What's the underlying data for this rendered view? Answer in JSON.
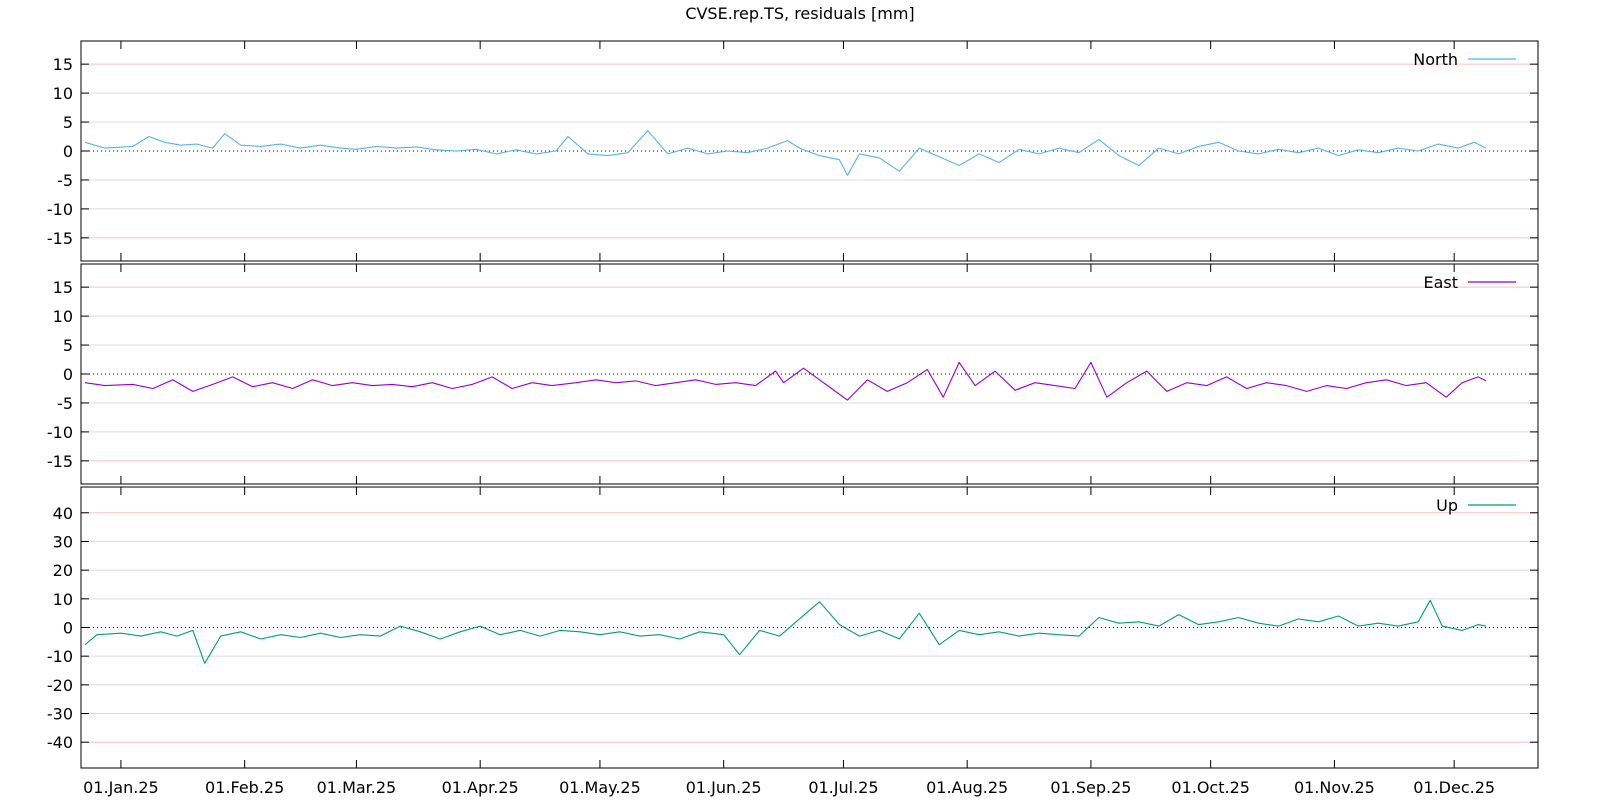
{
  "chart_data": {
    "type": "line",
    "title": "CVSE.rep.TS, residuals [mm]",
    "x_axis": {
      "type": "date",
      "range": [
        "2024-12-22",
        "2025-12-22"
      ],
      "tick_dates": [
        "2025-01-01",
        "2025-02-01",
        "2025-03-01",
        "2025-04-01",
        "2025-05-01",
        "2025-06-01",
        "2025-07-01",
        "2025-08-01",
        "2025-09-01",
        "2025-10-01",
        "2025-11-01",
        "2025-12-01"
      ],
      "tick_labels": [
        "01.Jan.25",
        "01.Feb.25",
        "01.Mar.25",
        "01.Apr.25",
        "01.May.25",
        "01.Jun.25",
        "01.Jul.25",
        "01.Aug.25",
        "01.Sep.25",
        "01.Oct.25",
        "01.Nov.25",
        "01.Dec.25"
      ]
    },
    "panels": [
      {
        "name": "North",
        "color": "#56b4e9",
        "ylim": [
          -19,
          19
        ],
        "yticks": [
          -15,
          -10,
          -5,
          0,
          5,
          10,
          15
        ],
        "legend": "top-right",
        "points": [
          [
            "2024-12-23",
            1.5
          ],
          [
            "2024-12-28",
            0.5
          ],
          [
            "2025-01-04",
            0.8
          ],
          [
            "2025-01-08",
            2.5
          ],
          [
            "2025-01-12",
            1.5
          ],
          [
            "2025-01-16",
            1.0
          ],
          [
            "2025-01-20",
            1.2
          ],
          [
            "2025-01-24",
            0.5
          ],
          [
            "2025-01-27",
            3.0
          ],
          [
            "2025-01-31",
            1.0
          ],
          [
            "2025-02-05",
            0.8
          ],
          [
            "2025-02-10",
            1.2
          ],
          [
            "2025-02-15",
            0.5
          ],
          [
            "2025-02-20",
            1.0
          ],
          [
            "2025-02-25",
            0.5
          ],
          [
            "2025-03-01",
            0.3
          ],
          [
            "2025-03-06",
            0.8
          ],
          [
            "2025-03-11",
            0.5
          ],
          [
            "2025-03-16",
            0.7
          ],
          [
            "2025-03-21",
            0.2
          ],
          [
            "2025-03-26",
            0.0
          ],
          [
            "2025-03-31",
            0.3
          ],
          [
            "2025-04-05",
            -0.5
          ],
          [
            "2025-04-10",
            0.2
          ],
          [
            "2025-04-15",
            -0.5
          ],
          [
            "2025-04-20",
            0.0
          ],
          [
            "2025-04-23",
            2.5
          ],
          [
            "2025-04-28",
            -0.5
          ],
          [
            "2025-05-03",
            -0.8
          ],
          [
            "2025-05-08",
            -0.3
          ],
          [
            "2025-05-13",
            3.5
          ],
          [
            "2025-05-18",
            -0.5
          ],
          [
            "2025-05-23",
            0.5
          ],
          [
            "2025-05-28",
            -0.5
          ],
          [
            "2025-06-02",
            0.0
          ],
          [
            "2025-06-07",
            -0.3
          ],
          [
            "2025-06-12",
            0.5
          ],
          [
            "2025-06-17",
            1.8
          ],
          [
            "2025-06-20",
            0.5
          ],
          [
            "2025-06-25",
            -0.8
          ],
          [
            "2025-06-30",
            -1.5
          ],
          [
            "2025-07-02",
            -4.2
          ],
          [
            "2025-07-05",
            -0.5
          ],
          [
            "2025-07-10",
            -1.2
          ],
          [
            "2025-07-15",
            -3.5
          ],
          [
            "2025-07-20",
            0.5
          ],
          [
            "2025-07-25",
            -1.0
          ],
          [
            "2025-07-30",
            -2.5
          ],
          [
            "2025-08-04",
            -0.5
          ],
          [
            "2025-08-09",
            -2.0
          ],
          [
            "2025-08-14",
            0.3
          ],
          [
            "2025-08-19",
            -0.5
          ],
          [
            "2025-08-24",
            0.5
          ],
          [
            "2025-08-29",
            -0.3
          ],
          [
            "2025-09-03",
            2.0
          ],
          [
            "2025-09-08",
            -0.8
          ],
          [
            "2025-09-13",
            -2.5
          ],
          [
            "2025-09-18",
            0.5
          ],
          [
            "2025-09-23",
            -0.5
          ],
          [
            "2025-09-28",
            0.8
          ],
          [
            "2025-10-03",
            1.5
          ],
          [
            "2025-10-08",
            0.0
          ],
          [
            "2025-10-13",
            -0.5
          ],
          [
            "2025-10-18",
            0.3
          ],
          [
            "2025-10-23",
            -0.3
          ],
          [
            "2025-10-28",
            0.5
          ],
          [
            "2025-11-02",
            -0.8
          ],
          [
            "2025-11-07",
            0.2
          ],
          [
            "2025-11-12",
            -0.3
          ],
          [
            "2025-11-17",
            0.5
          ],
          [
            "2025-11-22",
            0.0
          ],
          [
            "2025-11-27",
            1.2
          ],
          [
            "2025-12-02",
            0.5
          ],
          [
            "2025-12-06",
            1.5
          ],
          [
            "2025-12-09",
            0.5
          ]
        ]
      },
      {
        "name": "East",
        "color": "#9400d3",
        "ylim": [
          -19,
          19
        ],
        "yticks": [
          -15,
          -10,
          -5,
          0,
          5,
          10,
          15
        ],
        "legend": "top-right",
        "points": [
          [
            "2024-12-23",
            -1.5
          ],
          [
            "2024-12-28",
            -2.0
          ],
          [
            "2025-01-04",
            -1.8
          ],
          [
            "2025-01-09",
            -2.5
          ],
          [
            "2025-01-14",
            -1.0
          ],
          [
            "2025-01-19",
            -3.0
          ],
          [
            "2025-01-24",
            -1.8
          ],
          [
            "2025-01-29",
            -0.5
          ],
          [
            "2025-02-03",
            -2.2
          ],
          [
            "2025-02-08",
            -1.5
          ],
          [
            "2025-02-13",
            -2.5
          ],
          [
            "2025-02-18",
            -1.0
          ],
          [
            "2025-02-23",
            -2.0
          ],
          [
            "2025-02-28",
            -1.5
          ],
          [
            "2025-03-05",
            -2.0
          ],
          [
            "2025-03-10",
            -1.8
          ],
          [
            "2025-03-15",
            -2.2
          ],
          [
            "2025-03-20",
            -1.5
          ],
          [
            "2025-03-25",
            -2.5
          ],
          [
            "2025-03-30",
            -1.8
          ],
          [
            "2025-04-04",
            -0.5
          ],
          [
            "2025-04-09",
            -2.5
          ],
          [
            "2025-04-14",
            -1.5
          ],
          [
            "2025-04-19",
            -2.0
          ],
          [
            "2025-04-25",
            -1.5
          ],
          [
            "2025-04-30",
            -1.0
          ],
          [
            "2025-05-05",
            -1.5
          ],
          [
            "2025-05-10",
            -1.2
          ],
          [
            "2025-05-15",
            -2.0
          ],
          [
            "2025-05-20",
            -1.5
          ],
          [
            "2025-05-25",
            -1.0
          ],
          [
            "2025-05-30",
            -1.8
          ],
          [
            "2025-06-04",
            -1.5
          ],
          [
            "2025-06-09",
            -2.0
          ],
          [
            "2025-06-14",
            0.5
          ],
          [
            "2025-06-16",
            -1.5
          ],
          [
            "2025-06-21",
            1.0
          ],
          [
            "2025-06-24",
            -0.5
          ],
          [
            "2025-06-28",
            -2.5
          ],
          [
            "2025-07-02",
            -4.5
          ],
          [
            "2025-07-07",
            -1.0
          ],
          [
            "2025-07-12",
            -3.0
          ],
          [
            "2025-07-17",
            -1.5
          ],
          [
            "2025-07-22",
            0.8
          ],
          [
            "2025-07-26",
            -4.0
          ],
          [
            "2025-07-30",
            2.0
          ],
          [
            "2025-08-03",
            -2.0
          ],
          [
            "2025-08-08",
            0.5
          ],
          [
            "2025-08-13",
            -2.8
          ],
          [
            "2025-08-18",
            -1.5
          ],
          [
            "2025-08-23",
            -2.0
          ],
          [
            "2025-08-28",
            -2.5
          ],
          [
            "2025-09-01",
            2.0
          ],
          [
            "2025-09-05",
            -4.0
          ],
          [
            "2025-09-10",
            -1.5
          ],
          [
            "2025-09-15",
            0.5
          ],
          [
            "2025-09-20",
            -3.0
          ],
          [
            "2025-09-25",
            -1.5
          ],
          [
            "2025-09-30",
            -2.0
          ],
          [
            "2025-10-05",
            -0.5
          ],
          [
            "2025-10-10",
            -2.5
          ],
          [
            "2025-10-15",
            -1.5
          ],
          [
            "2025-10-20",
            -2.0
          ],
          [
            "2025-10-25",
            -3.0
          ],
          [
            "2025-10-30",
            -2.0
          ],
          [
            "2025-11-04",
            -2.5
          ],
          [
            "2025-11-09",
            -1.5
          ],
          [
            "2025-11-14",
            -1.0
          ],
          [
            "2025-11-19",
            -2.0
          ],
          [
            "2025-11-24",
            -1.5
          ],
          [
            "2025-11-29",
            -4.0
          ],
          [
            "2025-12-03",
            -1.5
          ],
          [
            "2025-12-07",
            -0.5
          ],
          [
            "2025-12-09",
            -1.2
          ]
        ]
      },
      {
        "name": "Up",
        "color": "#009e73",
        "ylim": [
          -49,
          49
        ],
        "yticks": [
          -40,
          -30,
          -20,
          -10,
          0,
          10,
          20,
          30,
          40
        ],
        "legend": "top-right",
        "points": [
          [
            "2024-12-23",
            -6.0
          ],
          [
            "2024-12-26",
            -2.5
          ],
          [
            "2025-01-01",
            -2.0
          ],
          [
            "2025-01-06",
            -3.0
          ],
          [
            "2025-01-11",
            -1.5
          ],
          [
            "2025-01-15",
            -3.0
          ],
          [
            "2025-01-19",
            -1.0
          ],
          [
            "2025-01-22",
            -12.5
          ],
          [
            "2025-01-26",
            -3.0
          ],
          [
            "2025-01-31",
            -1.5
          ],
          [
            "2025-02-05",
            -4.0
          ],
          [
            "2025-02-10",
            -2.5
          ],
          [
            "2025-02-15",
            -3.5
          ],
          [
            "2025-02-20",
            -2.0
          ],
          [
            "2025-02-25",
            -3.5
          ],
          [
            "2025-03-02",
            -2.5
          ],
          [
            "2025-03-07",
            -3.0
          ],
          [
            "2025-03-12",
            0.5
          ],
          [
            "2025-03-17",
            -1.5
          ],
          [
            "2025-03-22",
            -4.0
          ],
          [
            "2025-03-27",
            -1.5
          ],
          [
            "2025-04-01",
            0.5
          ],
          [
            "2025-04-06",
            -2.5
          ],
          [
            "2025-04-11",
            -1.0
          ],
          [
            "2025-04-16",
            -3.0
          ],
          [
            "2025-04-21",
            -1.0
          ],
          [
            "2025-04-26",
            -1.5
          ],
          [
            "2025-05-01",
            -2.5
          ],
          [
            "2025-05-06",
            -1.5
          ],
          [
            "2025-05-11",
            -3.0
          ],
          [
            "2025-05-16",
            -2.5
          ],
          [
            "2025-05-21",
            -4.0
          ],
          [
            "2025-05-26",
            -1.5
          ],
          [
            "2025-06-01",
            -2.5
          ],
          [
            "2025-06-05",
            -9.5
          ],
          [
            "2025-06-10",
            -1.0
          ],
          [
            "2025-06-15",
            -3.0
          ],
          [
            "2025-06-20",
            3.0
          ],
          [
            "2025-06-25",
            9.0
          ],
          [
            "2025-06-30",
            1.0
          ],
          [
            "2025-07-05",
            -3.0
          ],
          [
            "2025-07-10",
            -1.0
          ],
          [
            "2025-07-15",
            -4.0
          ],
          [
            "2025-07-20",
            5.0
          ],
          [
            "2025-07-25",
            -6.0
          ],
          [
            "2025-07-30",
            -1.0
          ],
          [
            "2025-08-04",
            -2.5
          ],
          [
            "2025-08-09",
            -1.5
          ],
          [
            "2025-08-14",
            -3.0
          ],
          [
            "2025-08-19",
            -2.0
          ],
          [
            "2025-08-24",
            -2.5
          ],
          [
            "2025-08-29",
            -3.0
          ],
          [
            "2025-09-03",
            3.5
          ],
          [
            "2025-09-08",
            1.5
          ],
          [
            "2025-09-13",
            2.0
          ],
          [
            "2025-09-18",
            0.5
          ],
          [
            "2025-09-23",
            4.5
          ],
          [
            "2025-09-28",
            1.0
          ],
          [
            "2025-10-03",
            2.0
          ],
          [
            "2025-10-08",
            3.5
          ],
          [
            "2025-10-13",
            1.5
          ],
          [
            "2025-10-18",
            0.5
          ],
          [
            "2025-10-23",
            3.0
          ],
          [
            "2025-10-28",
            2.0
          ],
          [
            "2025-11-02",
            4.0
          ],
          [
            "2025-11-07",
            0.5
          ],
          [
            "2025-11-12",
            1.5
          ],
          [
            "2025-11-17",
            0.5
          ],
          [
            "2025-11-22",
            2.0
          ],
          [
            "2025-11-25",
            9.5
          ],
          [
            "2025-11-28",
            0.5
          ],
          [
            "2025-12-03",
            -1.0
          ],
          [
            "2025-12-07",
            1.0
          ],
          [
            "2025-12-09",
            0.5
          ]
        ]
      }
    ]
  }
}
